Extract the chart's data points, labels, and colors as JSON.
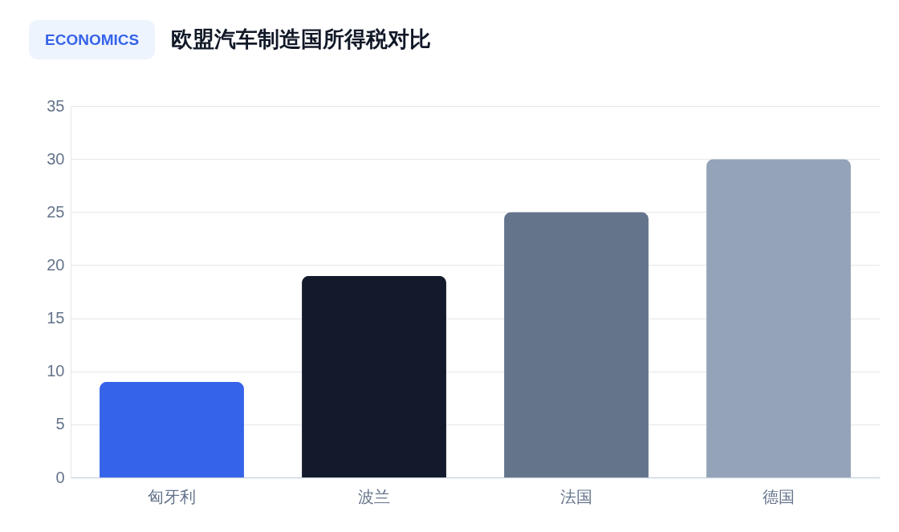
{
  "chart_data": {
    "type": "bar",
    "subtitle": "ECONOMICS",
    "title": "欧盟汽车制造国所得税对比",
    "categories": [
      "匈牙利",
      "波兰",
      "法国",
      "德国"
    ],
    "values": [
      9,
      19,
      25,
      30
    ],
    "colors": [
      "#3563e9",
      "#131a2c",
      "#64748b",
      "#94a3b8"
    ],
    "ylim": [
      0,
      35
    ],
    "yticks": [
      0,
      5,
      10,
      15,
      20,
      25,
      30,
      35
    ],
    "grid": true
  }
}
